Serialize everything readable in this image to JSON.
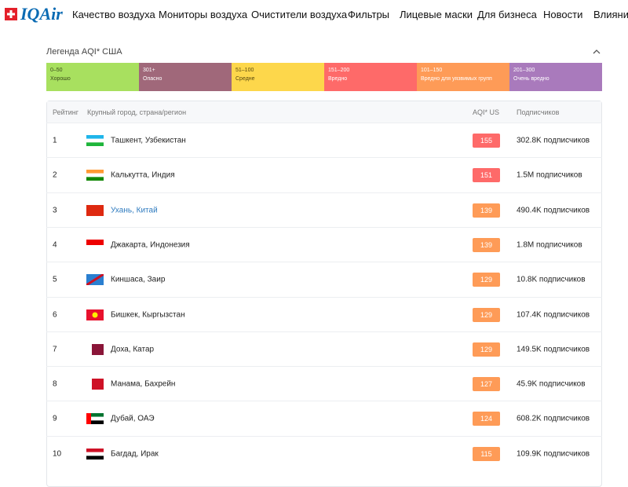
{
  "header": {
    "logo": "IQAir",
    "nav": [
      "Качество воздуха",
      "Мониторы воздуха",
      "Очистители воздуха",
      "Фильтры",
      "Лицевые маски",
      "Для бизнеса",
      "Новости",
      "Влияние"
    ]
  },
  "legend": {
    "title": "Легенда AQI* США",
    "items": [
      {
        "range": "0–50",
        "label": "Хорошо",
        "color": "#a8e05f",
        "text": "#3a4a1c"
      },
      {
        "range": "301+",
        "label": "Опасно",
        "color": "#a0687a",
        "text": "#ffffff"
      },
      {
        "range": "51–100",
        "label": "Средне",
        "color": "#fdd74b",
        "text": "#5a4a10"
      },
      {
        "range": "151–200",
        "label": "Вредно",
        "color": "#fe6a69",
        "text": "#ffffff"
      },
      {
        "range": "101–150",
        "label": "Вредно для уязвимых групп",
        "color": "#fe9b57",
        "text": "#ffffff"
      },
      {
        "range": "201–300",
        "label": "Очень вредно",
        "color": "#a97abc",
        "text": "#ffffff"
      }
    ]
  },
  "table": {
    "columns": [
      "Рейтинг",
      "Крупный город, страна/регион",
      "AQI* US",
      "Подписчиков"
    ],
    "rows": [
      {
        "rank": 1,
        "city": "Ташкент, Узбекистан",
        "aqi": 155,
        "subscribers": "302.8K подписчиков",
        "color": "#fe6a69"
      },
      {
        "rank": 2,
        "city": "Калькутта, Индия",
        "aqi": 151,
        "subscribers": "1.5M подписчиков",
        "color": "#fe6a69"
      },
      {
        "rank": 3,
        "city": "Ухань, Китай",
        "aqi": 139,
        "subscribers": "490.4K подписчиков",
        "color": "#fe9b57",
        "link": true
      },
      {
        "rank": 4,
        "city": "Джакарта, Индонезия",
        "aqi": 139,
        "subscribers": "1.8M подписчиков",
        "color": "#fe9b57"
      },
      {
        "rank": 5,
        "city": "Киншаса, Заир",
        "aqi": 129,
        "subscribers": "10.8K подписчиков",
        "color": "#fe9b57"
      },
      {
        "rank": 6,
        "city": "Бишкек, Кыргызстан",
        "aqi": 129,
        "subscribers": "107.4K подписчиков",
        "color": "#fe9b57"
      },
      {
        "rank": 7,
        "city": "Доха, Катар",
        "aqi": 129,
        "subscribers": "149.5K подписчиков",
        "color": "#fe9b57"
      },
      {
        "rank": 8,
        "city": "Манама, Бахрейн",
        "aqi": 127,
        "subscribers": "45.9K подписчиков",
        "color": "#fe9b57"
      },
      {
        "rank": 9,
        "city": "Дубай, ОАЭ",
        "aqi": 124,
        "subscribers": "608.2K подписчиков",
        "color": "#fe9b57"
      },
      {
        "rank": 10,
        "city": "Багдад, Ирак",
        "aqi": 115,
        "subscribers": "109.9K подписчиков",
        "color": "#fe9b57"
      }
    ]
  }
}
